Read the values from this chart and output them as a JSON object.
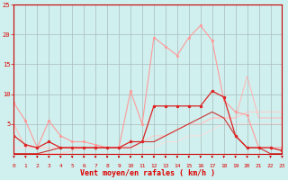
{
  "xlabel": "Vent moyen/en rafales ( km/h )",
  "xlim": [
    0,
    23
  ],
  "ylim": [
    0,
    25
  ],
  "xticks": [
    0,
    1,
    2,
    3,
    4,
    5,
    6,
    7,
    8,
    9,
    10,
    11,
    12,
    13,
    14,
    15,
    16,
    17,
    18,
    19,
    20,
    21,
    22,
    23
  ],
  "yticks": [
    5,
    10,
    15,
    20,
    25
  ],
  "bg_color": "#cff0ee",
  "grid_color": "#aabbbb",
  "series": [
    {
      "x": [
        0,
        1,
        2,
        3,
        4,
        5,
        6,
        7,
        8,
        9,
        10,
        11,
        12,
        13,
        14,
        15,
        16,
        17,
        18,
        19,
        20,
        21,
        22,
        23
      ],
      "y": [
        8.5,
        5.5,
        1,
        5.5,
        3,
        2,
        2,
        1.5,
        1,
        1,
        10.5,
        5,
        19.5,
        18,
        16.5,
        19.5,
        21.5,
        19,
        9,
        7,
        6.5,
        1,
        1,
        1
      ],
      "color": "#ff9999",
      "linewidth": 0.8,
      "marker": ".",
      "markersize": 2.5,
      "alpha": 1.0,
      "zorder": 2
    },
    {
      "x": [
        0,
        1,
        2,
        3,
        4,
        5,
        6,
        7,
        8,
        9,
        10,
        11,
        12,
        13,
        14,
        15,
        16,
        17,
        18,
        19,
        20,
        21,
        22,
        23
      ],
      "y": [
        3,
        1.5,
        1,
        2,
        1,
        1,
        1,
        1,
        1,
        1,
        2,
        2,
        8,
        8,
        8,
        8,
        8,
        10.5,
        9.5,
        3,
        1,
        1,
        1,
        0.5
      ],
      "color": "#dd2222",
      "linewidth": 0.9,
      "marker": ".",
      "markersize": 3,
      "alpha": 1.0,
      "zorder": 3
    },
    {
      "x": [
        0,
        1,
        2,
        3,
        4,
        5,
        6,
        7,
        8,
        9,
        10,
        11,
        12,
        13,
        14,
        15,
        16,
        17,
        18,
        19,
        20,
        21,
        22,
        23
      ],
      "y": [
        5,
        1,
        1,
        1,
        1,
        1,
        1,
        1,
        1,
        1,
        1,
        2,
        2,
        3,
        4,
        5,
        5,
        6,
        6,
        6,
        13,
        6,
        6,
        6
      ],
      "color": "#ffbbbb",
      "linewidth": 0.8,
      "marker": null,
      "markersize": 0,
      "alpha": 1.0,
      "zorder": 1
    },
    {
      "x": [
        0,
        1,
        2,
        3,
        4,
        5,
        6,
        7,
        8,
        9,
        10,
        11,
        12,
        13,
        14,
        15,
        16,
        17,
        18,
        19,
        20,
        21,
        22,
        23
      ],
      "y": [
        0,
        0,
        0,
        0.5,
        1,
        1,
        1,
        1,
        1,
        1,
        1,
        2,
        2,
        3,
        4,
        5,
        6,
        7,
        6,
        3,
        1,
        1,
        0,
        0
      ],
      "color": "#cc3333",
      "linewidth": 0.8,
      "marker": null,
      "markersize": 0,
      "alpha": 1.0,
      "zorder": 2
    },
    {
      "x": [
        0,
        1,
        2,
        3,
        4,
        5,
        6,
        7,
        8,
        9,
        10,
        11,
        12,
        13,
        14,
        15,
        16,
        17,
        18,
        19,
        20,
        21,
        22,
        23
      ],
      "y": [
        0,
        0,
        0,
        0,
        0,
        0.5,
        1,
        1,
        1,
        1,
        1,
        2,
        3,
        3,
        4,
        5,
        5,
        6,
        6,
        6,
        7,
        7,
        7,
        7
      ],
      "color": "#ffcccc",
      "linewidth": 0.8,
      "marker": null,
      "markersize": 0,
      "alpha": 1.0,
      "zorder": 1
    },
    {
      "x": [
        0,
        1,
        2,
        3,
        4,
        5,
        6,
        7,
        8,
        9,
        10,
        11,
        12,
        13,
        14,
        15,
        16,
        17,
        18,
        19,
        20,
        21,
        22,
        23
      ],
      "y": [
        1,
        1,
        1,
        1,
        1,
        1,
        1,
        1,
        1,
        1,
        1,
        1,
        1,
        2,
        2,
        3,
        3,
        4,
        5,
        5,
        5,
        5,
        5,
        5
      ],
      "color": "#ffdddd",
      "linewidth": 0.7,
      "marker": null,
      "markersize": 0,
      "alpha": 1.0,
      "zorder": 1
    }
  ],
  "tick_color": "#dd0000",
  "xlabel_color": "#dd0000",
  "axis_color": "#cc0000",
  "arrow_color": "#cc0000",
  "figsize": [
    3.2,
    2.0
  ],
  "dpi": 100
}
